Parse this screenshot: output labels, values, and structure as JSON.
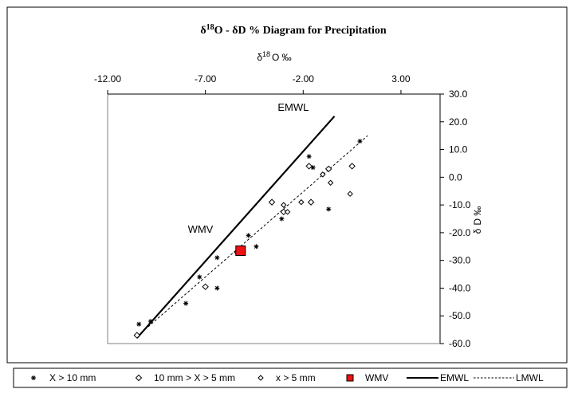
{
  "chart_data": {
    "type": "scatter",
    "title": "δ18O - δD % Diagram for Precipitation",
    "title_parts": {
      "delta": "δ",
      "sup": "18",
      "rest_a": "O - ",
      "delta2": "δ",
      "rest_b": "D % Diagram for Precipitation"
    },
    "xlabel": "δ18O ‰",
    "xlabel_parts": {
      "delta": "δ",
      "sup": "18",
      "rest": "O ‰"
    },
    "ylabel": "δ D ‰",
    "ylabel_parts": {
      "delta": "δ",
      "rest": "D ‰"
    },
    "x_axis": {
      "position": "top",
      "lim": [
        -12,
        5
      ],
      "ticks": [
        -12,
        -7,
        -2,
        3
      ],
      "tick_labels": [
        "-12.00",
        "-7.00",
        "-2.00",
        "3.00"
      ]
    },
    "y_axis": {
      "position": "right",
      "lim": [
        -60,
        30
      ],
      "ticks": [
        30,
        20,
        10,
        0,
        -10,
        -20,
        -30,
        -40,
        -50,
        -60
      ],
      "tick_labels": [
        "30.0",
        "20.0",
        "10.0",
        "0.0",
        "-10.0",
        "-20.0",
        "-30.0",
        "-40.0",
        "-50.0",
        "-60.0"
      ]
    },
    "grid": false,
    "legend_placement": "bottom",
    "series": [
      {
        "name": "X > 10 mm",
        "marker": "asterisk",
        "points": [
          [
            -10.4,
            -53
          ],
          [
            -9.8,
            -52
          ],
          [
            -8.0,
            -45.5
          ],
          [
            -7.3,
            -36
          ],
          [
            -6.4,
            -40
          ],
          [
            -6.4,
            -29
          ],
          [
            -4.8,
            -21
          ],
          [
            -4.4,
            -25
          ],
          [
            -3.1,
            -15
          ],
          [
            -1.7,
            7.5
          ],
          [
            -1.5,
            3.5
          ],
          [
            -0.7,
            -11.5
          ],
          [
            0.9,
            13
          ]
        ]
      },
      {
        "name": "10 mm > X > 5 mm",
        "marker": "diamond",
        "points": [
          [
            -10.5,
            -57
          ],
          [
            -7.0,
            -39.5
          ],
          [
            -3.6,
            -9
          ],
          [
            -3.0,
            -12.5
          ],
          [
            -1.7,
            4
          ],
          [
            -1.6,
            -9
          ],
          [
            -0.7,
            3
          ],
          [
            0.5,
            4
          ]
        ]
      },
      {
        "name": "x > 5 mm",
        "marker": "diamond-small",
        "points": [
          [
            -5.4,
            -27
          ],
          [
            -3.0,
            -10
          ],
          [
            -2.8,
            -12.5
          ],
          [
            -2.1,
            -9
          ],
          [
            -1.0,
            1
          ],
          [
            -0.6,
            -2
          ],
          [
            0.4,
            -6
          ]
        ]
      },
      {
        "name": "WMV",
        "marker": "square",
        "points": [
          [
            -5.2,
            -26.5
          ]
        ]
      }
    ],
    "lines": [
      {
        "name": "EMWL",
        "style": "solid",
        "from": [
          -10.5,
          -58
        ],
        "to": [
          -0.4,
          22
        ]
      },
      {
        "name": "LMWL",
        "style": "dashed",
        "from": [
          -10.1,
          -55
        ],
        "to": [
          1.3,
          15
        ]
      }
    ],
    "annotations": [
      {
        "text": "EMWL",
        "at": [
          -3.3,
          24
        ]
      },
      {
        "text": "WMV",
        "at": [
          -7.9,
          -20
        ]
      }
    ],
    "colors": {
      "wmv": "#ee1111",
      "line": "#000000"
    }
  }
}
